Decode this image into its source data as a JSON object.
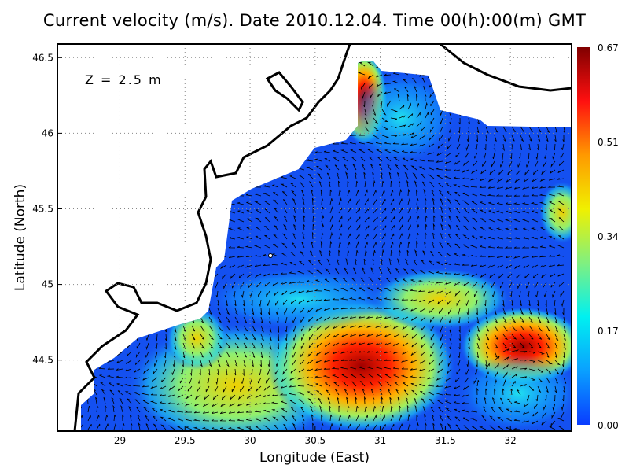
{
  "title": "Current velocity (m/s). Date 2010.12.04. Time 00(h):00(m) GMT",
  "annotation": "Z = 2.5 m",
  "chart_data": {
    "type": "heatmap",
    "subtype": "current velocity magnitude with vector arrows over sea map",
    "title": "Current velocity (m/s). Date 2010.12.04. Time 00(h):00(m) GMT",
    "xlabel": "Longitude (East)",
    "ylabel": "Latitude (North)",
    "xlim": [
      28.52,
      32.47
    ],
    "ylim": [
      44.03,
      46.59
    ],
    "xticks": [
      "29",
      "29.5",
      "30",
      "30.5",
      "31",
      "31.5",
      "32"
    ],
    "yticks": [
      "44.5",
      "45",
      "45.5",
      "46",
      "46.5"
    ],
    "grid": true,
    "colorbar": {
      "position": "right",
      "range": [
        0.0,
        0.67
      ],
      "ticks": [
        "0.00",
        "0.17",
        "0.34",
        "0.51",
        "0.67"
      ],
      "colormap": [
        "#0a3cff",
        "#0aa0ff",
        "#00f0f0",
        "#80f080",
        "#f0f000",
        "#ff9900",
        "#ff1010",
        "#800000"
      ]
    },
    "high_speed_areas": [
      {
        "lon": 30.85,
        "lat": 44.45,
        "value": 0.6
      },
      {
        "lon": 31.9,
        "lat": 44.6,
        "value": 0.5
      },
      {
        "lon": 30.85,
        "lat": 46.25,
        "value": 0.6
      },
      {
        "lon": 30.1,
        "lat": 44.3,
        "value": 0.4
      }
    ],
    "colors": {
      "sea_background": "#1450f0",
      "land": "#ffffff",
      "coastline": "#000000"
    }
  }
}
